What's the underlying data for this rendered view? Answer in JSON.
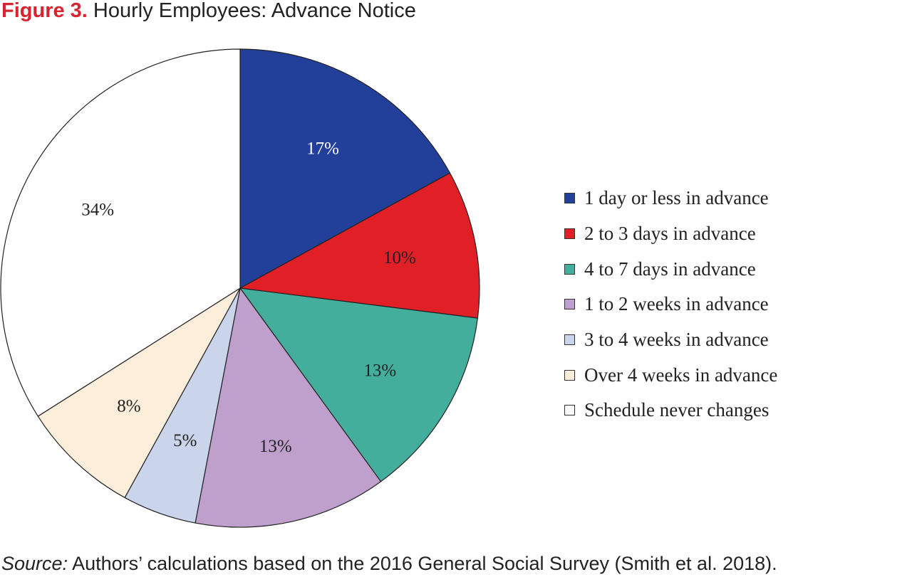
{
  "figure": {
    "number": "Figure 3.",
    "title": "Hourly Employees: Advance Notice"
  },
  "source": {
    "label": "Source:",
    "text": " Authors’ calculations based on the 2016 General Social Survey (Smith et al. 2018)."
  },
  "chart_data": {
    "type": "pie",
    "title": "Hourly Employees: Advance Notice",
    "start_angle_deg": 0,
    "direction": "clockwise",
    "legend_position": "right",
    "slices": [
      {
        "label": "1 day or less in advance",
        "value": 17,
        "display": "17%",
        "color": "#22409a",
        "light_text": true
      },
      {
        "label": "2 to 3 days in advance",
        "value": 10,
        "display": "10%",
        "color": "#e01f26",
        "light_text": false
      },
      {
        "label": "4 to 7 days in advance",
        "value": 13,
        "display": "13%",
        "color": "#44ae9c",
        "light_text": false
      },
      {
        "label": "1 to 2 weeks in advance",
        "value": 13,
        "display": "13%",
        "color": "#bf9fcc",
        "light_text": false
      },
      {
        "label": "3 to 4 weeks in advance",
        "value": 5,
        "display": "5%",
        "color": "#cad4ea",
        "light_text": false
      },
      {
        "label": "Over 4 weeks in advance",
        "value": 8,
        "display": "8%",
        "color": "#fdeedc",
        "light_text": false
      },
      {
        "label": "Schedule never changes",
        "value": 34,
        "display": "34%",
        "color": "#ffffff",
        "light_text": false
      }
    ]
  }
}
